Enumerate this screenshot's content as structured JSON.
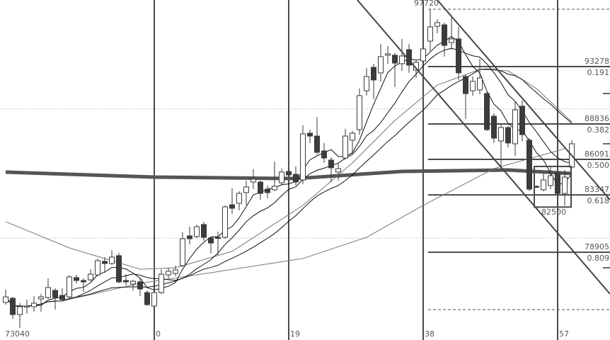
{
  "chart_data": {
    "type": "candlestick",
    "first_bar_index": -21,
    "ohlc": [
      [
        75020,
        76000,
        74850,
        75450
      ],
      [
        75340,
        75450,
        73750,
        74080
      ],
      [
        74080,
        74960,
        73040,
        74690
      ],
      [
        74690,
        75240,
        74140,
        74740
      ],
      [
        74690,
        75510,
        74300,
        74960
      ],
      [
        75290,
        75670,
        74300,
        75450
      ],
      [
        75400,
        76880,
        75290,
        76170
      ],
      [
        75950,
        76110,
        74470,
        75400
      ],
      [
        75560,
        76110,
        75130,
        75240
      ],
      [
        75450,
        77150,
        75340,
        76990
      ],
      [
        76940,
        77150,
        76500,
        76720
      ],
      [
        76720,
        76880,
        75840,
        76610
      ],
      [
        76770,
        77590,
        76660,
        77210
      ],
      [
        77150,
        78420,
        77050,
        78250
      ],
      [
        78200,
        78530,
        77320,
        78030
      ],
      [
        78030,
        79070,
        77920,
        78530
      ],
      [
        78640,
        78860,
        76500,
        76610
      ],
      [
        76720,
        77210,
        76330,
        76610
      ],
      [
        76440,
        76770,
        75950,
        76660
      ],
      [
        76610,
        76880,
        75510,
        76060
      ],
      [
        75780,
        75950,
        74740,
        74850
      ],
      [
        74740,
        76220,
        74630,
        75780
      ],
      [
        75780,
        77590,
        75670,
        77210
      ],
      [
        77150,
        77700,
        76880,
        77430
      ],
      [
        77260,
        77870,
        77050,
        77540
      ],
      [
        77870,
        80450,
        77760,
        79950
      ],
      [
        80170,
        80880,
        79510,
        79950
      ],
      [
        80120,
        81050,
        80010,
        80880
      ],
      [
        81050,
        81270,
        79790,
        80060
      ],
      [
        80010,
        80120,
        78800,
        79620
      ],
      [
        80060,
        80500,
        78690,
        80040
      ],
      [
        80060,
        82530,
        79950,
        82420
      ],
      [
        82580,
        83850,
        81870,
        82310
      ],
      [
        82690,
        83630,
        82150,
        83460
      ],
      [
        83520,
        84450,
        82530,
        83960
      ],
      [
        84340,
        85330,
        83790,
        84560
      ],
      [
        84340,
        84450,
        82970,
        83460
      ],
      [
        83790,
        84070,
        83080,
        83520
      ],
      [
        83740,
        85930,
        83630,
        84010
      ],
      [
        84280,
        85380,
        84070,
        85110
      ],
      [
        85160,
        85380,
        84720,
        84890
      ],
      [
        84940,
        85550,
        84070,
        84340
      ],
      [
        84500,
        88730,
        84180,
        88070
      ],
      [
        88120,
        88400,
        87360,
        87900
      ],
      [
        87900,
        89380,
        86480,
        86640
      ],
      [
        86750,
        87360,
        85820,
        86200
      ],
      [
        86040,
        86260,
        84340,
        85440
      ],
      [
        85110,
        85820,
        84450,
        85380
      ],
      [
        86200,
        88450,
        86090,
        87900
      ],
      [
        87580,
        88290,
        86530,
        88120
      ],
      [
        88400,
        91580,
        88010,
        91030
      ],
      [
        91410,
        93170,
        91030,
        92510
      ],
      [
        93220,
        93500,
        90760,
        92240
      ],
      [
        92790,
        95030,
        92130,
        94050
      ],
      [
        94160,
        94870,
        93500,
        94270
      ],
      [
        94160,
        94320,
        91690,
        93550
      ],
      [
        93500,
        95420,
        92950,
        94100
      ],
      [
        94590,
        95030,
        92790,
        93390
      ],
      [
        93000,
        93770,
        92400,
        93610
      ],
      [
        93720,
        94760,
        93110,
        94650
      ],
      [
        95250,
        97720,
        94490,
        96350
      ],
      [
        96400,
        96950,
        95860,
        96680
      ],
      [
        96510,
        96680,
        94050,
        94920
      ],
      [
        95140,
        97060,
        94590,
        95420
      ],
      [
        95420,
        96350,
        92240,
        92790
      ],
      [
        92510,
        92680,
        89220,
        91190
      ],
      [
        91410,
        92510,
        91030,
        92130
      ],
      [
        91470,
        93880,
        91140,
        92400
      ],
      [
        91190,
        91300,
        88290,
        88400
      ],
      [
        89440,
        89660,
        87360,
        87740
      ],
      [
        87520,
        88840,
        85440,
        88560
      ],
      [
        88560,
        88670,
        87030,
        87360
      ],
      [
        87300,
        90590,
        86370,
        89930
      ],
      [
        90210,
        90650,
        87470,
        88010
      ],
      [
        87580,
        87740,
        83630,
        83790
      ],
      [
        84010,
        84070,
        83960,
        83990
      ],
      [
        83740,
        85000,
        83630,
        84500
      ],
      [
        84070,
        85550,
        83790,
        84830
      ],
      [
        85050,
        85270,
        83350,
        83460
      ],
      [
        83460,
        85270,
        82500,
        84720
      ],
      [
        85490,
        87580,
        85380,
        87300
      ]
    ],
    "overlay_lines": [
      {
        "style": "thick",
        "color": "#555555",
        "points": [
          [
            -21,
            85110
          ],
          [
            0,
            84720
          ],
          [
            20,
            84610
          ],
          [
            35,
            85160
          ],
          [
            50,
            85270
          ],
          [
            59,
            85000
          ]
        ]
      },
      {
        "style": "thin",
        "color": "#777777",
        "points": [
          [
            -21,
            81270
          ],
          [
            -12,
            79240
          ],
          [
            -2,
            77590
          ],
          [
            3,
            77700
          ],
          [
            11,
            78970
          ],
          [
            21,
            82530
          ],
          [
            28,
            85820
          ],
          [
            34,
            89110
          ],
          [
            40,
            91850
          ],
          [
            46,
            93060
          ],
          [
            50,
            92950
          ],
          [
            54,
            91580
          ],
          [
            59,
            89000
          ]
        ]
      },
      {
        "style": "thin",
        "color": "#777777",
        "points": [
          [
            -13,
            75130
          ],
          [
            -2,
            76500
          ],
          [
            8,
            77320
          ],
          [
            21,
            78420
          ],
          [
            30,
            80060
          ],
          [
            38,
            82530
          ],
          [
            48,
            85380
          ],
          [
            58,
            86920
          ]
        ]
      }
    ],
    "gridlines": [
      90000,
      80000
    ],
    "vertical_markers": [
      {
        "bar": 0,
        "label": "0"
      },
      {
        "bar": 19,
        "label": "19"
      },
      {
        "bar": 38,
        "label": "38"
      },
      {
        "bar": 57,
        "label": "57"
      }
    ],
    "fibonacci": {
      "high": 97720,
      "low": 74464,
      "levels": [
        {
          "price": "93278",
          "ratio": "0.191"
        },
        {
          "price": "88836",
          "ratio": "0.382"
        },
        {
          "price": "86091",
          "ratio": "0.500"
        },
        {
          "price": "83347",
          "ratio": "0.618"
        },
        {
          "price": "78905",
          "ratio": "0.809"
        }
      ]
    },
    "trendlines": [
      {
        "from": [
          28.7,
          98433
        ],
        "to": [
          64.4,
          75674
        ]
      },
      {
        "from": [
          40,
          98433
        ],
        "to": [
          64.4,
          82968
        ]
      }
    ],
    "box": {
      "from_bar": 53.7,
      "to_bar": 58.9,
      "top": 85546,
      "bottom": 82400,
      "label": "82500"
    },
    "labels": {
      "high": "97720",
      "low": "73040"
    },
    "colors": {
      "bear": "#3c3c3c",
      "bull": "#ffffff",
      "outline": "#3a3a3a",
      "markers": "#4a4a4a"
    }
  }
}
